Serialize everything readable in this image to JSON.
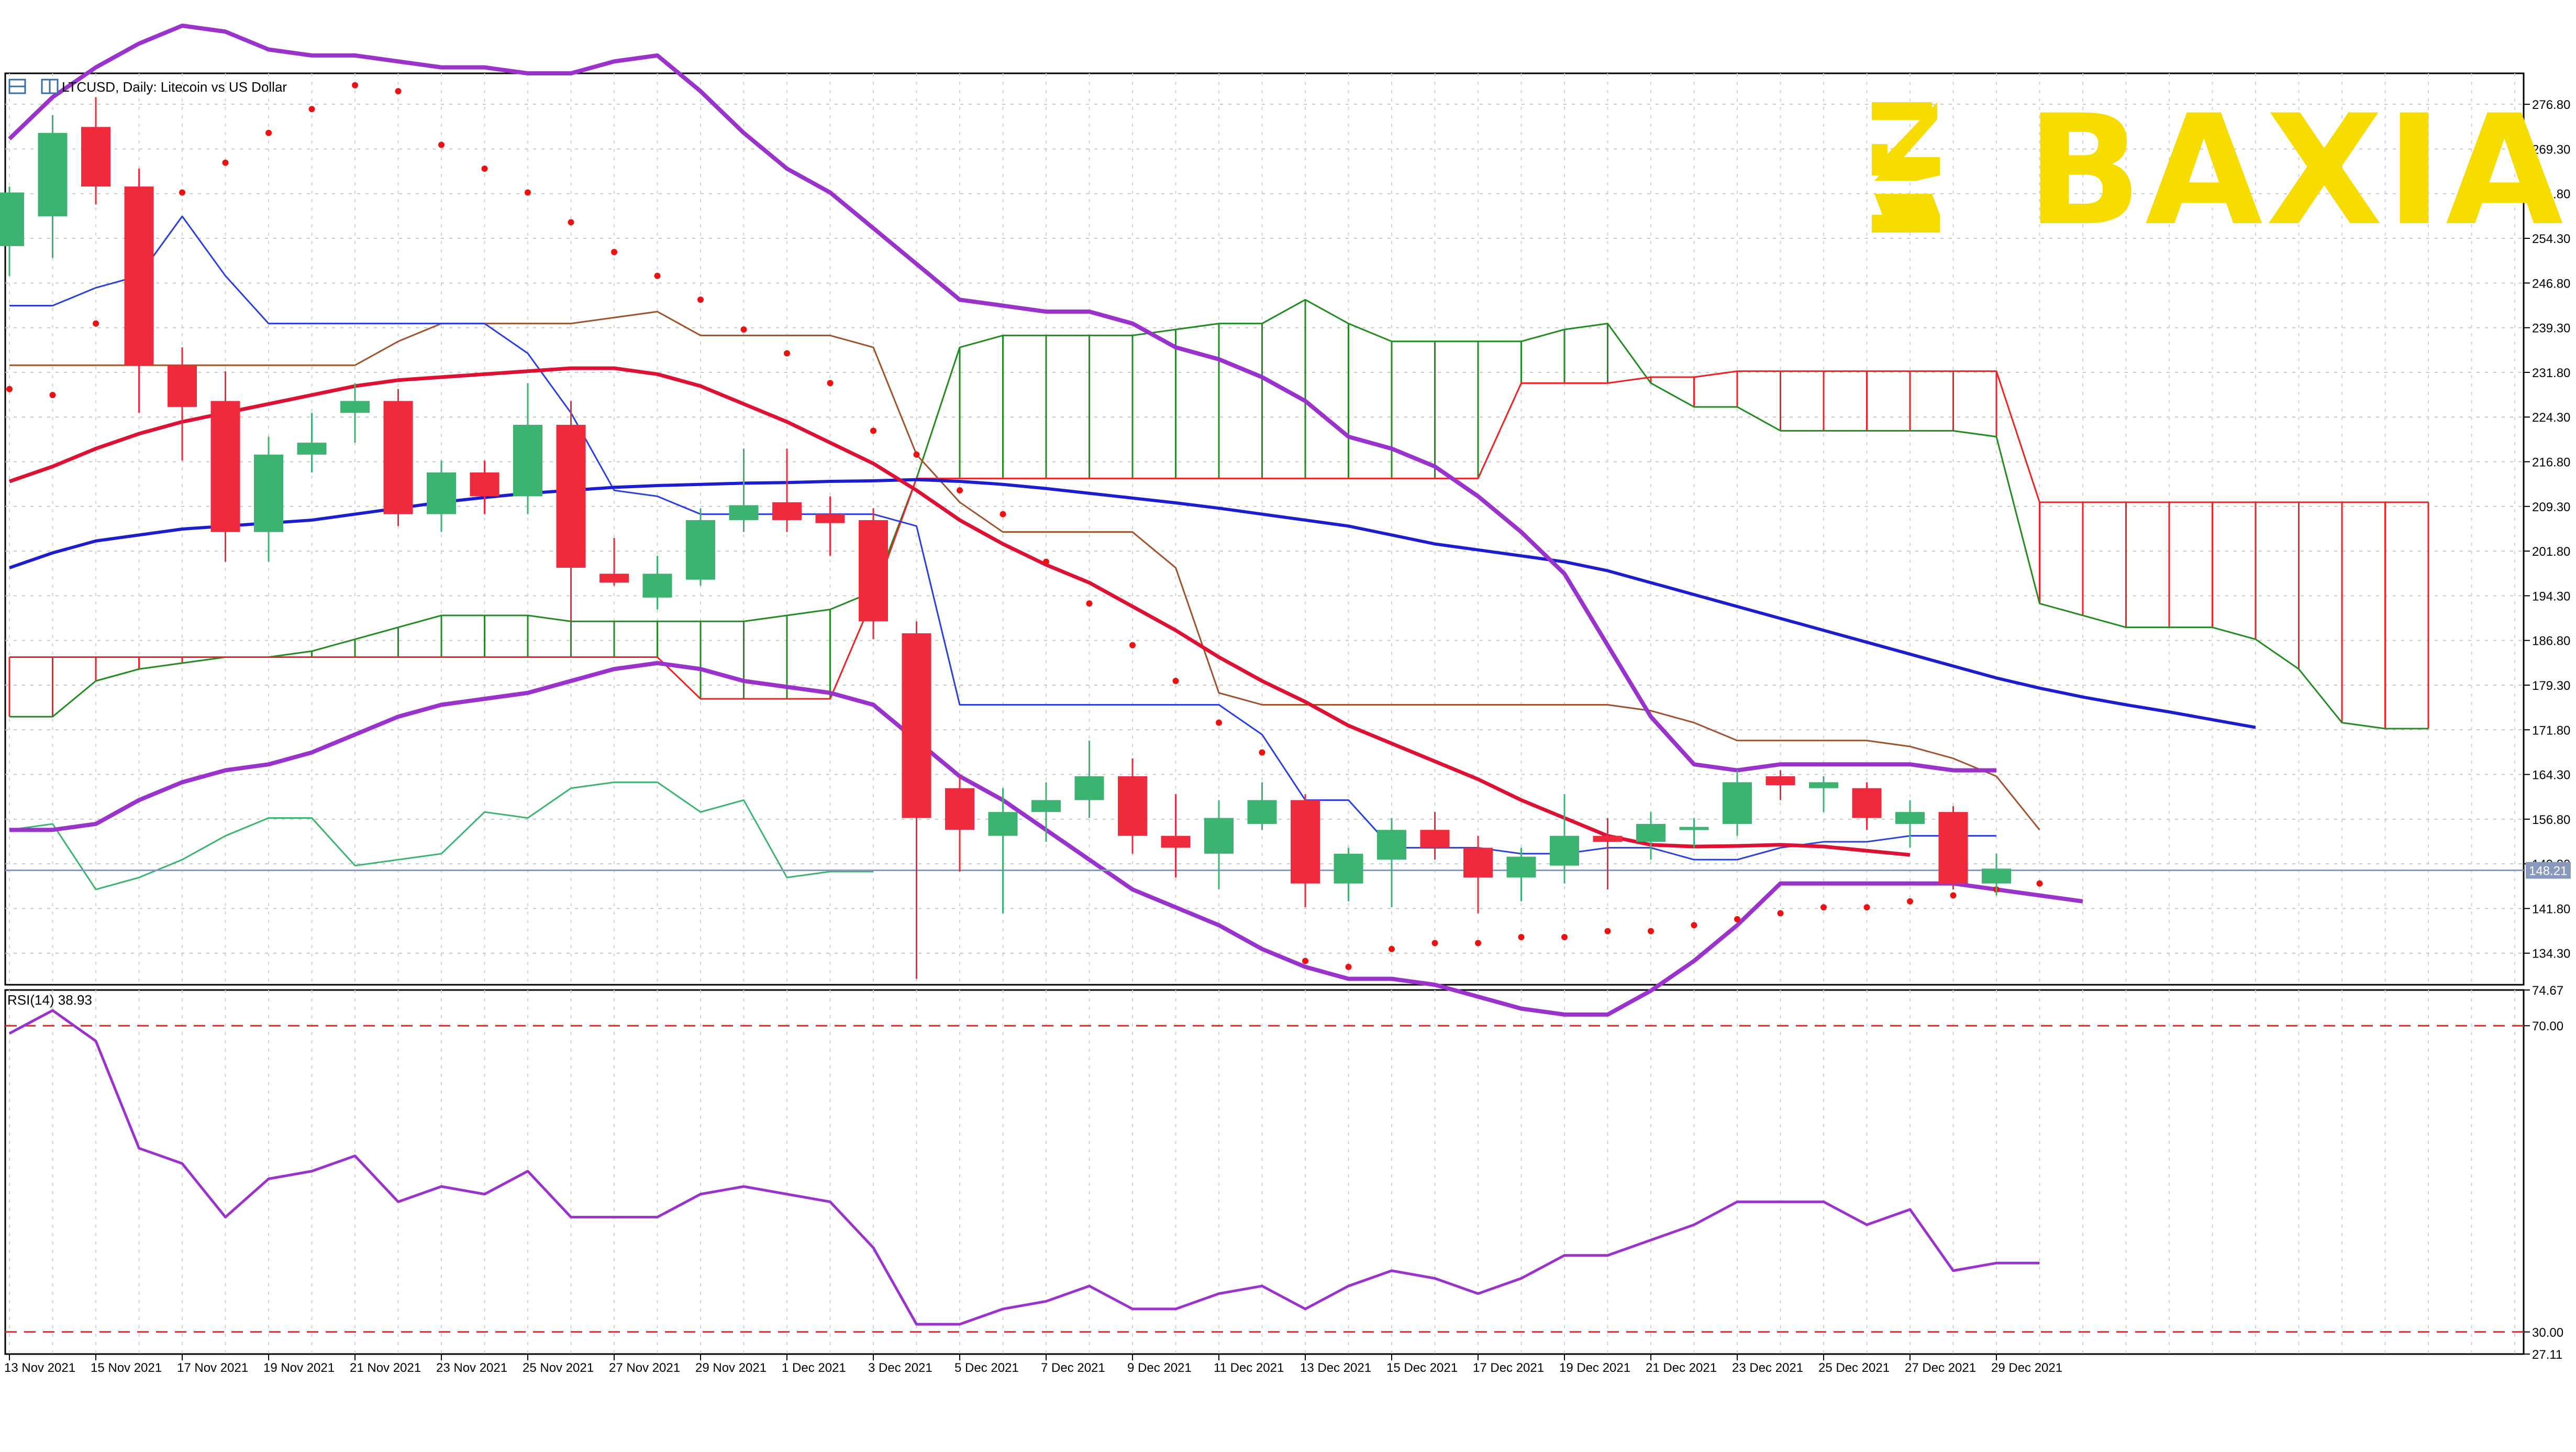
{
  "header": {
    "symbol_line": "LTCUSD, Daily:  Litecoin vs US Dollar"
  },
  "logo": {
    "text": "BAXIA",
    "color": "#f7dc00"
  },
  "colors": {
    "bull": "#3cb371",
    "bear": "#ee2a3c",
    "bollinger": "#9933cc",
    "ma_fast": "#dd1133",
    "ma_slow": "#1d1dd0",
    "tenkan": "#2b3fe0",
    "kijun": "#a0522d",
    "chikou": "#3cb371",
    "span_a": "#228b22",
    "span_b": "#ee2222",
    "psar": "#ee1111",
    "rsi": "#9933cc",
    "rsi_levels": "#ee2222",
    "price_line": "#8899bb"
  },
  "chart_data": [
    {
      "type": "candlestick",
      "title": "LTCUSD, Daily:  Litecoin vs US Dollar",
      "ylim": [
        129.0,
        282.0
      ],
      "y_ticks": [
        "276.80",
        "269.30",
        "261.80",
        "254.30",
        "246.80",
        "239.30",
        "231.80",
        "224.30",
        "216.80",
        "209.30",
        "201.80",
        "194.30",
        "186.80",
        "179.30",
        "171.80",
        "164.30",
        "156.80",
        "149.30",
        "141.80",
        "134.30"
      ],
      "x_labels": [
        "13 Nov 2021",
        "15 Nov 2021",
        "17 Nov 2021",
        "19 Nov 2021",
        "21 Nov 2021",
        "23 Nov 2021",
        "25 Nov 2021",
        "27 Nov 2021",
        "29 Nov 2021",
        "1 Dec 2021",
        "3 Dec 2021",
        "5 Dec 2021",
        "7 Dec 2021",
        "9 Dec 2021",
        "11 Dec 2021",
        "13 Dec 2021",
        "15 Dec 2021",
        "17 Dec 2021",
        "19 Dec 2021",
        "21 Dec 2021",
        "23 Dec 2021",
        "25 Dec 2021",
        "27 Dec 2021",
        "29 Dec 2021"
      ],
      "current_price": "148.21",
      "candles": [
        {
          "date": "13 Nov 2021",
          "o": 253.0,
          "h": 263.0,
          "l": 248.0,
          "c": 262.0
        },
        {
          "date": "14 Nov 2021",
          "o": 258.0,
          "h": 275.0,
          "l": 251.0,
          "c": 272.0
        },
        {
          "date": "15 Nov 2021",
          "o": 273.0,
          "h": 278.0,
          "l": 260.0,
          "c": 263.0
        },
        {
          "date": "16 Nov 2021",
          "o": 263.0,
          "h": 266.0,
          "l": 225.0,
          "c": 233.0
        },
        {
          "date": "17 Nov 2021",
          "o": 233.0,
          "h": 236.0,
          "l": 217.0,
          "c": 226.0
        },
        {
          "date": "18 Nov 2021",
          "o": 227.0,
          "h": 232.0,
          "l": 200.0,
          "c": 205.0
        },
        {
          "date": "19 Nov 2021",
          "o": 205.0,
          "h": 221.0,
          "l": 200.0,
          "c": 218.0
        },
        {
          "date": "20 Nov 2021",
          "o": 218.0,
          "h": 225.0,
          "l": 215.0,
          "c": 220.0
        },
        {
          "date": "21 Nov 2021",
          "o": 225.0,
          "h": 230.0,
          "l": 220.0,
          "c": 227.0
        },
        {
          "date": "22 Nov 2021",
          "o": 227.0,
          "h": 229.0,
          "l": 206.0,
          "c": 208.0
        },
        {
          "date": "23 Nov 2021",
          "o": 208.0,
          "h": 217.0,
          "l": 205.0,
          "c": 215.0
        },
        {
          "date": "24 Nov 2021",
          "o": 215.0,
          "h": 217.0,
          "l": 208.0,
          "c": 211.0
        },
        {
          "date": "25 Nov 2021",
          "o": 211.0,
          "h": 230.0,
          "l": 208.0,
          "c": 223.0
        },
        {
          "date": "26 Nov 2021",
          "o": 223.0,
          "h": 227.0,
          "l": 190.0,
          "c": 199.0
        },
        {
          "date": "27 Nov 2021",
          "o": 198.0,
          "h": 204.0,
          "l": 196.0,
          "c": 196.5
        },
        {
          "date": "28 Nov 2021",
          "o": 194.0,
          "h": 201.0,
          "l": 192.0,
          "c": 198.0
        },
        {
          "date": "29 Nov 2021",
          "o": 197.0,
          "h": 209.0,
          "l": 196.0,
          "c": 207.0
        },
        {
          "date": "30 Nov 2021",
          "o": 207.0,
          "h": 219.0,
          "l": 205.0,
          "c": 209.5
        },
        {
          "date": "1 Dec 2021",
          "o": 210.0,
          "h": 219.0,
          "l": 205.0,
          "c": 207.0
        },
        {
          "date": "2 Dec 2021",
          "o": 208.0,
          "h": 211.0,
          "l": 201.0,
          "c": 206.5
        },
        {
          "date": "3 Dec 2021",
          "o": 207.0,
          "h": 209.0,
          "l": 187.0,
          "c": 190.0
        },
        {
          "date": "4 Dec 2021",
          "o": 188.0,
          "h": 190.0,
          "l": 130.0,
          "c": 157.0
        },
        {
          "date": "5 Dec 2021",
          "o": 162.0,
          "h": 164.0,
          "l": 148.0,
          "c": 155.0
        },
        {
          "date": "6 Dec 2021",
          "o": 154.0,
          "h": 162.0,
          "l": 141.0,
          "c": 158.0
        },
        {
          "date": "7 Dec 2021",
          "o": 158.0,
          "h": 163.0,
          "l": 153.0,
          "c": 160.0
        },
        {
          "date": "8 Dec 2021",
          "o": 160.0,
          "h": 170.0,
          "l": 157.0,
          "c": 164.0
        },
        {
          "date": "9 Dec 2021",
          "o": 164.0,
          "h": 167.0,
          "l": 151.0,
          "c": 154.0
        },
        {
          "date": "10 Dec 2021",
          "o": 154.0,
          "h": 161.0,
          "l": 147.0,
          "c": 152.0
        },
        {
          "date": "11 Dec 2021",
          "o": 151.0,
          "h": 160.0,
          "l": 145.0,
          "c": 157.0
        },
        {
          "date": "12 Dec 2021",
          "o": 156.0,
          "h": 163.0,
          "l": 155.0,
          "c": 160.0
        },
        {
          "date": "13 Dec 2021",
          "o": 160.0,
          "h": 161.0,
          "l": 142.0,
          "c": 146.0
        },
        {
          "date": "14 Dec 2021",
          "o": 146.0,
          "h": 152.0,
          "l": 143.0,
          "c": 151.0
        },
        {
          "date": "15 Dec 2021",
          "o": 150.0,
          "h": 157.0,
          "l": 142.0,
          "c": 155.0
        },
        {
          "date": "16 Dec 2021",
          "o": 155.0,
          "h": 158.0,
          "l": 150.0,
          "c": 152.0
        },
        {
          "date": "17 Dec 2021",
          "o": 152.0,
          "h": 154.0,
          "l": 141.0,
          "c": 147.0
        },
        {
          "date": "18 Dec 2021",
          "o": 147.0,
          "h": 152.0,
          "l": 143.0,
          "c": 150.5
        },
        {
          "date": "19 Dec 2021",
          "o": 149.0,
          "h": 161.0,
          "l": 146.0,
          "c": 154.0
        },
        {
          "date": "20 Dec 2021",
          "o": 154.0,
          "h": 157.0,
          "l": 145.0,
          "c": 153.0
        },
        {
          "date": "21 Dec 2021",
          "o": 153.0,
          "h": 158.0,
          "l": 150.0,
          "c": 156.0
        },
        {
          "date": "22 Dec 2021",
          "o": 155.0,
          "h": 157.0,
          "l": 152.0,
          "c": 155.5
        },
        {
          "date": "23 Dec 2021",
          "o": 156.0,
          "h": 165.0,
          "l": 154.0,
          "c": 163.0
        },
        {
          "date": "24 Dec 2021",
          "o": 164.0,
          "h": 165.0,
          "l": 160.0,
          "c": 162.5
        },
        {
          "date": "25 Dec 2021",
          "o": 162.0,
          "h": 164.0,
          "l": 158.0,
          "c": 163.0
        },
        {
          "date": "26 Dec 2021",
          "o": 162.0,
          "h": 163.0,
          "l": 155.0,
          "c": 157.0
        },
        {
          "date": "27 Dec 2021",
          "o": 156.0,
          "h": 160.0,
          "l": 152.0,
          "c": 158.0
        },
        {
          "date": "28 Dec 2021",
          "o": 158.0,
          "h": 159.0,
          "l": 145.0,
          "c": 146.0
        },
        {
          "date": "29 Dec 2021",
          "o": 146.0,
          "h": 151.0,
          "l": 144.0,
          "c": 148.5
        }
      ],
      "indicators": {
        "bollinger_upper": [
          271,
          278,
          283,
          287,
          290,
          289,
          286,
          285,
          285,
          284,
          283,
          283,
          282,
          282,
          284,
          285,
          279,
          272,
          266,
          262,
          256,
          250,
          244,
          243,
          242,
          242,
          240,
          236,
          234,
          231,
          227,
          221,
          219,
          216,
          211,
          205,
          198,
          186,
          174,
          166,
          165,
          166,
          166,
          166,
          166,
          165,
          165
        ],
        "bollinger_lower": [
          155,
          155,
          156,
          160,
          163,
          165,
          166,
          168,
          171,
          174,
          176,
          177,
          178,
          180,
          182,
          183,
          182,
          180,
          179,
          178,
          176,
          170,
          164,
          160,
          155,
          150,
          145,
          142,
          139,
          135,
          132,
          130,
          130,
          129,
          127,
          125,
          124,
          124,
          128,
          133,
          139,
          146,
          146,
          146,
          146,
          146,
          145,
          144,
          143
        ],
        "ma_fast": [
          213.5,
          216,
          219,
          221.5,
          223.5,
          225,
          226.5,
          228,
          229.5,
          230.5,
          231,
          231.5,
          232,
          232.5,
          232.5,
          231.5,
          229.5,
          226.5,
          223.5,
          220,
          216.5,
          212,
          207,
          203,
          199.5,
          196.5,
          192.5,
          188.5,
          184,
          180,
          176.5,
          172.5,
          169.5,
          166.5,
          163.5,
          160,
          157,
          154,
          152.5,
          152.2,
          152.3,
          152.5,
          152.2,
          151.5,
          150.8
        ],
        "ma_slow": [
          199,
          201.5,
          203.5,
          204.5,
          205.5,
          206,
          206.5,
          207,
          208,
          209,
          210,
          210.8,
          211.5,
          212,
          212.5,
          212.8,
          213,
          213.2,
          213.3,
          213.5,
          213.6,
          213.8,
          213.5,
          213,
          212.3,
          211.5,
          210.7,
          209.9,
          209,
          208,
          207,
          206,
          204.5,
          203,
          202,
          201,
          200,
          198.5,
          196.5,
          194.5,
          192.5,
          190.5,
          188.5,
          186.5,
          184.5,
          182.5,
          180.5,
          178.8,
          177.3,
          176,
          174.8,
          173.5,
          172.2
        ],
        "tenkan_sen": [
          243,
          243,
          246,
          248,
          258,
          248,
          240,
          240,
          240,
          240,
          240,
          240,
          235,
          225,
          212,
          211,
          208,
          208,
          208,
          208,
          208,
          206,
          176,
          176,
          176,
          176,
          176,
          176,
          176,
          171,
          160,
          160,
          152,
          152,
          152,
          151,
          151,
          152,
          152,
          150,
          150,
          152,
          153,
          153,
          154,
          154,
          154
        ],
        "kijun_sen": [
          233,
          233,
          233,
          233,
          233,
          233,
          233,
          233,
          233,
          237,
          240,
          240,
          240,
          240,
          241,
          242,
          238,
          238,
          238,
          238,
          236,
          218,
          210,
          205,
          205,
          205,
          205,
          199,
          178,
          176,
          176,
          176,
          176,
          176,
          176,
          176,
          176,
          176,
          175,
          173,
          170,
          170,
          170,
          170,
          169,
          167,
          164,
          155
        ],
        "chikou_span": [
          155,
          156,
          145,
          147,
          150,
          154,
          157,
          157,
          149,
          150,
          151,
          158,
          157,
          162,
          163,
          163,
          158,
          160,
          147,
          148,
          148
        ],
        "span_a": [
          174,
          174,
          180,
          182,
          183,
          184,
          184,
          185,
          187,
          189,
          191,
          191,
          191,
          190,
          190,
          190,
          190,
          190,
          191,
          192,
          195,
          214,
          236,
          238,
          238,
          238,
          238,
          239,
          240,
          240,
          244,
          240,
          237,
          237,
          237,
          237,
          239,
          240,
          230,
          226,
          226,
          222,
          222,
          222,
          222,
          222,
          221,
          193,
          191,
          189,
          189,
          189,
          187,
          182,
          173,
          172,
          172
        ],
        "span_b": [
          184,
          184,
          184,
          184,
          184,
          184,
          184,
          184,
          184,
          184,
          184,
          184,
          184,
          184,
          184,
          184,
          177,
          177,
          177,
          177,
          194,
          214,
          214,
          214,
          214,
          214,
          214,
          214,
          214,
          214,
          214,
          214,
          214,
          214,
          214,
          230,
          230,
          230,
          231,
          231,
          232,
          232,
          232,
          232,
          232,
          232,
          232,
          210,
          210,
          210,
          210,
          210,
          210,
          210,
          210,
          210,
          210
        ],
        "psar": [
          229,
          228,
          240,
          250,
          262,
          267,
          272,
          276,
          280,
          279,
          270,
          266,
          262,
          257,
          252,
          248,
          244,
          239,
          235,
          230,
          222,
          218,
          212,
          208,
          200,
          193,
          186,
          180,
          173,
          168,
          133,
          132,
          135,
          136,
          136,
          137,
          137,
          138,
          138,
          139,
          140,
          141,
          142,
          142,
          143,
          144,
          145,
          146
        ]
      }
    },
    {
      "type": "line",
      "title": "RSI(14) 38.93",
      "ylim": [
        27.11,
        74.67
      ],
      "y_ticks": [
        "74.67",
        "70.00",
        "30.00",
        "27.11"
      ],
      "levels": [
        70,
        30
      ],
      "values": [
        69,
        72,
        68,
        54,
        52,
        45,
        50,
        51,
        53,
        47,
        49,
        48,
        51,
        45,
        45,
        45,
        48,
        49,
        48,
        47,
        41,
        31,
        31,
        33,
        34,
        36,
        33,
        33,
        35,
        36,
        33,
        36,
        38,
        37,
        35,
        37,
        40,
        40,
        42,
        44,
        47,
        47,
        47,
        44,
        46,
        38,
        39,
        39
      ]
    }
  ]
}
